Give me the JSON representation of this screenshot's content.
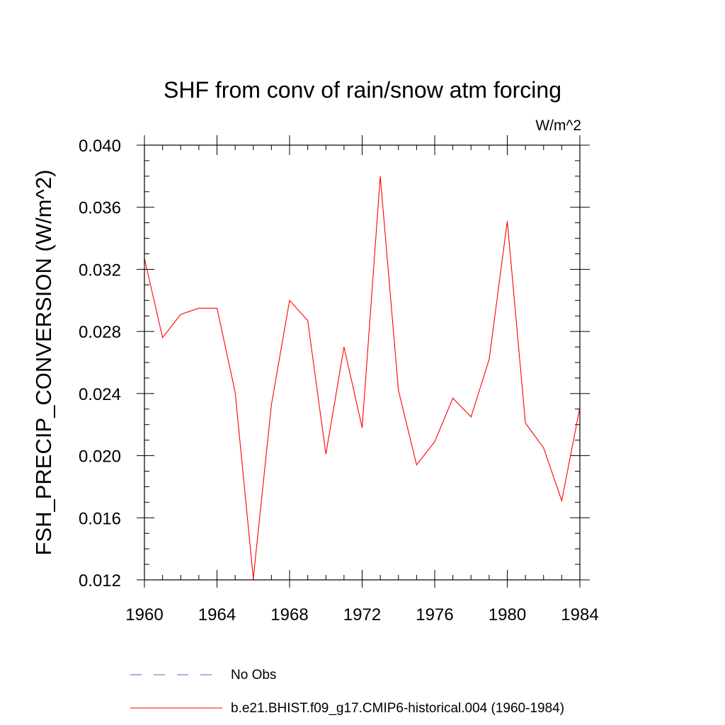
{
  "chart_data": {
    "type": "line",
    "title": "SHF from conv of rain/snow atm forcing",
    "units": "W/m^2",
    "xlabel": "",
    "ylabel": "FSH_PRECIP_CONVERSION  (W/m^2)",
    "xlim": [
      1960,
      1984
    ],
    "ylim": [
      0.012,
      0.04
    ],
    "x_ticks": [
      1960,
      1964,
      1968,
      1972,
      1976,
      1980,
      1984
    ],
    "x_tick_labels": [
      "1960",
      "1964",
      "1968",
      "1972",
      "1976",
      "1980",
      "1984"
    ],
    "y_ticks": [
      0.012,
      0.016,
      0.02,
      0.024,
      0.028,
      0.032,
      0.036,
      0.04
    ],
    "y_tick_labels": [
      "0.012",
      "0.016",
      "0.020",
      "0.024",
      "0.028",
      "0.032",
      "0.036",
      "0.040"
    ],
    "series": [
      {
        "name": "b.e21.BHIST.f09_g17.CMIP6-historical.004 (1960-1984)",
        "color": "#ff0000",
        "dash": "solid",
        "x": [
          1960,
          1961,
          1962,
          1963,
          1964,
          1965,
          1966,
          1967,
          1968,
          1969,
          1970,
          1971,
          1972,
          1973,
          1974,
          1975,
          1976,
          1977,
          1978,
          1979,
          1980,
          1981,
          1982,
          1983,
          1984
        ],
        "values": [
          0.0327,
          0.0276,
          0.0291,
          0.0295,
          0.0295,
          0.0241,
          0.0121,
          0.0233,
          0.03,
          0.0287,
          0.0201,
          0.027,
          0.0218,
          0.038,
          0.0242,
          0.0194,
          0.0209,
          0.0237,
          0.0225,
          0.0262,
          0.0351,
          0.0221,
          0.0205,
          0.0171,
          0.0231
        ]
      }
    ],
    "legend": [
      {
        "label": "No Obs",
        "color": "#6a5acd",
        "dash": "dashed"
      },
      {
        "label": "b.e21.BHIST.f09_g17.CMIP6-historical.004 (1960-1984)",
        "color": "#ff0000",
        "dash": "solid"
      }
    ]
  }
}
